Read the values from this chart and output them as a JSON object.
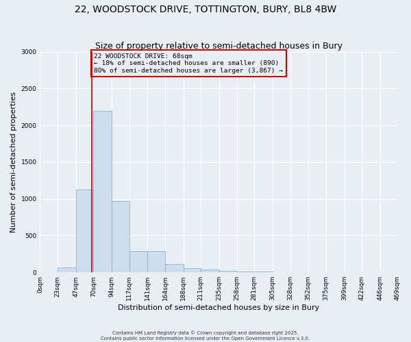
{
  "title_line1": "22, WOODSTOCK DRIVE, TOTTINGTON, BURY, BL8 4BW",
  "title_line2": "Size of property relative to semi-detached houses in Bury",
  "xlabel": "Distribution of semi-detached houses by size in Bury",
  "ylabel": "Number of semi-detached properties",
  "property_size": 68,
  "bar_color": "#ccdded",
  "bar_edge_color": "#7aabcc",
  "red_line_color": "#cc0000",
  "annotation_line1": "22 WOODSTOCK DRIVE: 68sqm",
  "annotation_line2": "← 18% of semi-detached houses are smaller (890)",
  "annotation_line3": "80% of semi-detached houses are larger (3,867) →",
  "bin_edges": [
    0,
    23,
    47,
    70,
    94,
    117,
    141,
    164,
    188,
    211,
    235,
    258,
    281,
    305,
    328,
    352,
    375,
    399,
    422,
    446,
    469
  ],
  "bar_heights": [
    0,
    70,
    1130,
    2200,
    970,
    290,
    290,
    110,
    55,
    35,
    20,
    15,
    10,
    2,
    2,
    1,
    1,
    0,
    0,
    0
  ],
  "ylim": [
    0,
    3000
  ],
  "yticks": [
    0,
    500,
    1000,
    1500,
    2000,
    2500,
    3000
  ],
  "background_color": "#e8eef4",
  "plot_bg_color": "#e8eef4",
  "grid_color": "#ffffff",
  "title_fontsize": 10,
  "subtitle_fontsize": 9,
  "tick_fontsize": 6.5,
  "axis_label_fontsize": 8,
  "footer_fontsize": 5,
  "footer_text": "Contains HM Land Registry data © Crown copyright and database right 2025.\nContains public sector information licensed under the Open Government Licence v.3.0."
}
